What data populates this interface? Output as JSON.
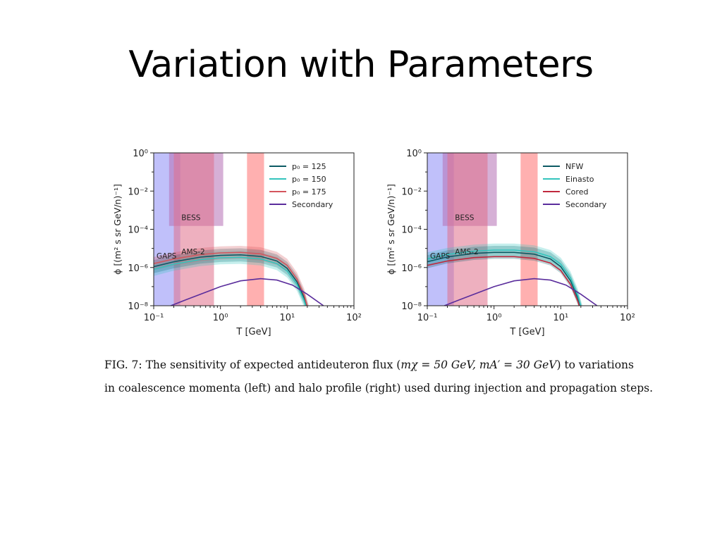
{
  "slide": {
    "title": "Variation with Parameters",
    "caption_line1_prefix": "FIG. 7:  The sensitivity of expected antideuteron flux (",
    "caption_math": "mχ = 50 GeV, mA′ = 30 GeV",
    "caption_line1_suffix": ") to variations",
    "caption_line2": "in coalescence momenta (left) and halo profile (right) used during injection and propagation steps."
  },
  "chart_data": [
    {
      "type": "line",
      "xscale": "log",
      "yscale": "log",
      "xlim": [
        0.1,
        100
      ],
      "ylim": [
        1e-08,
        1
      ],
      "xlabel": "T [GeV]",
      "ylabel": "ϕ [(m² s sr GeV/n)⁻¹]",
      "xticks": [
        "10⁻¹",
        "10⁰",
        "10¹",
        "10²"
      ],
      "yticks": [
        "10⁻⁸",
        "10⁻⁶",
        "10⁻⁴",
        "10⁻²",
        "10⁰"
      ],
      "legend_position": "top-right",
      "regions": [
        {
          "label": "GAPS",
          "x": [
            0.1,
            0.25
          ],
          "y": [
            1e-08,
            1
          ],
          "color": "#8c8cf5"
        },
        {
          "label": "BESS",
          "x": [
            0.17,
            1.1
          ],
          "y": [
            0.00015,
            1
          ],
          "color": "#b56fb5"
        },
        {
          "label": "AMS-2",
          "x": [
            0.2,
            0.8
          ],
          "y": [
            1e-08,
            1
          ],
          "color": "#e06f8a"
        },
        {
          "label": "",
          "x": [
            2.5,
            4.5
          ],
          "y": [
            1e-08,
            1
          ],
          "color": "#ff7070"
        }
      ],
      "series": [
        {
          "name": "p₀ = 125",
          "color": "#0c5a64",
          "band": true,
          "x": [
            0.1,
            0.2,
            0.5,
            1,
            2,
            4,
            7,
            10,
            14,
            18,
            21
          ],
          "y": [
            1.1e-06,
            2e-06,
            3.5e-06,
            4.3e-06,
            4.6e-06,
            3.8e-06,
            2.2e-06,
            9e-07,
            1.8e-07,
            2.5e-08,
            4e-09
          ]
        },
        {
          "name": "p₀ = 150",
          "color": "#33c4bd",
          "band": true,
          "x": [
            0.1,
            0.2,
            0.5,
            1,
            2,
            4,
            7,
            10,
            14,
            18,
            21
          ],
          "y": [
            8e-07,
            1.5e-06,
            2.6e-06,
            3.2e-06,
            3.4e-06,
            2.8e-06,
            1.6e-06,
            6.5e-07,
            1.3e-07,
            1.8e-08,
            3e-09
          ]
        },
        {
          "name": "p₀ = 175",
          "color": "#d4555d",
          "band": true,
          "x": [
            0.1,
            0.2,
            0.5,
            1,
            2,
            4,
            7,
            10,
            14,
            18,
            21
          ],
          "y": [
            1.6e-06,
            2.8e-06,
            4.8e-06,
            5.8e-06,
            6.2e-06,
            5.2e-06,
            3e-06,
            1.3e-06,
            2.5e-07,
            3.5e-08,
            5e-09
          ]
        },
        {
          "name": "Secondary",
          "color": "#5a2d9c",
          "band": false,
          "x": [
            0.18,
            0.3,
            0.5,
            1,
            2,
            4,
            7,
            12,
            20,
            35
          ],
          "y": [
            1e-08,
            2e-08,
            4e-08,
            1e-07,
            2e-07,
            2.6e-07,
            2.2e-07,
            1.2e-07,
            4e-08,
            1e-08
          ]
        }
      ]
    },
    {
      "type": "line",
      "xscale": "log",
      "yscale": "log",
      "xlim": [
        0.1,
        100
      ],
      "ylim": [
        1e-08,
        1
      ],
      "xlabel": "T [GeV]",
      "ylabel": "ϕ [(m² s sr GeV/n)⁻¹]",
      "xticks": [
        "10⁻¹",
        "10⁰",
        "10¹",
        "10²"
      ],
      "yticks": [
        "10⁻⁸",
        "10⁻⁶",
        "10⁻⁴",
        "10⁻²",
        "10⁰"
      ],
      "legend_position": "top-right",
      "regions": [
        {
          "label": "GAPS",
          "x": [
            0.1,
            0.25
          ],
          "y": [
            1e-08,
            1
          ],
          "color": "#8c8cf5"
        },
        {
          "label": "BESS",
          "x": [
            0.17,
            1.1
          ],
          "y": [
            0.00015,
            1
          ],
          "color": "#b56fb5"
        },
        {
          "label": "AMS-2",
          "x": [
            0.2,
            0.8
          ],
          "y": [
            1e-08,
            1
          ],
          "color": "#e06f8a"
        },
        {
          "label": "",
          "x": [
            2.5,
            4.5
          ],
          "y": [
            1e-08,
            1
          ],
          "color": "#ff7070"
        }
      ],
      "series": [
        {
          "name": "NFW",
          "color": "#0c5a64",
          "band": true,
          "x": [
            0.1,
            0.2,
            0.5,
            1,
            2,
            4,
            7,
            10,
            14,
            18,
            21
          ],
          "y": [
            2e-06,
            3.6e-06,
            5.5e-06,
            6.2e-06,
            6.2e-06,
            5e-06,
            2.8e-06,
            1.1e-06,
            2e-07,
            2.5e-08,
            4e-09
          ]
        },
        {
          "name": "Einasto",
          "color": "#33c4bd",
          "band": true,
          "x": [
            0.1,
            0.2,
            0.5,
            1,
            2,
            4,
            7,
            10,
            14,
            18,
            21
          ],
          "y": [
            2.8e-06,
            4.8e-06,
            7.2e-06,
            8.2e-06,
            8.2e-06,
            6.6e-06,
            3.7e-06,
            1.5e-06,
            2.8e-07,
            3.5e-08,
            5e-09
          ]
        },
        {
          "name": "Cored",
          "color": "#c0283d",
          "band": false,
          "x": [
            0.1,
            0.2,
            0.5,
            1,
            2,
            4,
            7,
            10,
            14,
            18,
            21
          ],
          "y": [
            1.3e-06,
            2.2e-06,
            3.3e-06,
            3.7e-06,
            3.7e-06,
            3e-06,
            1.7e-06,
            7e-07,
            1.3e-07,
            1.7e-08,
            3e-09
          ]
        },
        {
          "name": "Secondary",
          "color": "#5a2d9c",
          "band": false,
          "x": [
            0.18,
            0.3,
            0.5,
            1,
            2,
            4,
            7,
            12,
            20,
            35
          ],
          "y": [
            1e-08,
            2e-08,
            4e-08,
            1e-07,
            2e-07,
            2.6e-07,
            2.2e-07,
            1.2e-07,
            4e-08,
            1e-08
          ]
        }
      ]
    }
  ]
}
